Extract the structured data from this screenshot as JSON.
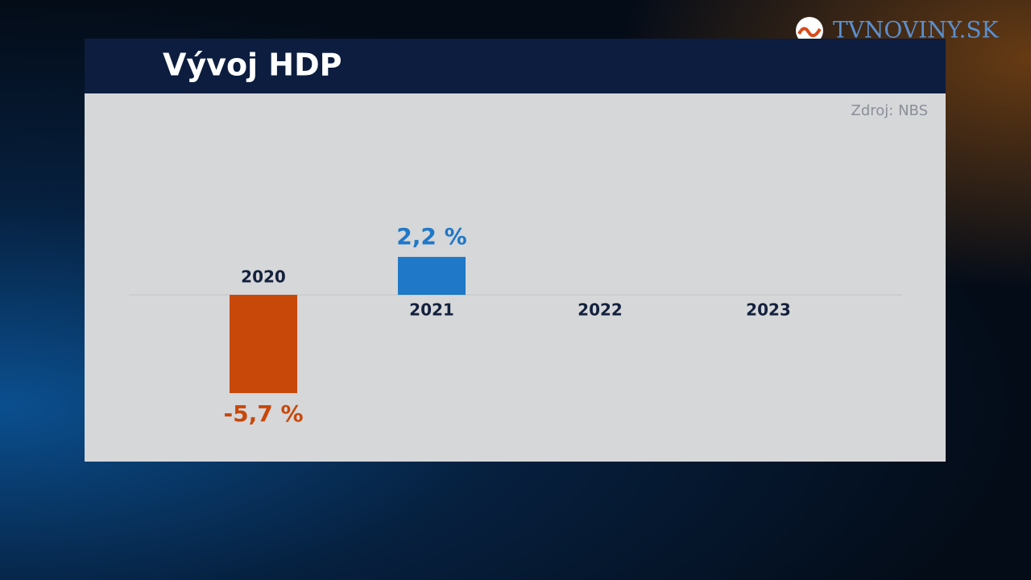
{
  "chart_data": {
    "type": "bar",
    "title": "Vývoj HDP",
    "source": "Zdroj: NBS",
    "brand": "TVNOVINY.SK",
    "categories": [
      "2020",
      "2021",
      "2022",
      "2023"
    ],
    "values": [
      -5.7,
      2.2,
      null,
      null
    ],
    "value_labels": [
      "-5,7 %",
      "2,2 %",
      null,
      null
    ],
    "positive_color": "#1f78c8",
    "negative_color": "#c8480a"
  }
}
